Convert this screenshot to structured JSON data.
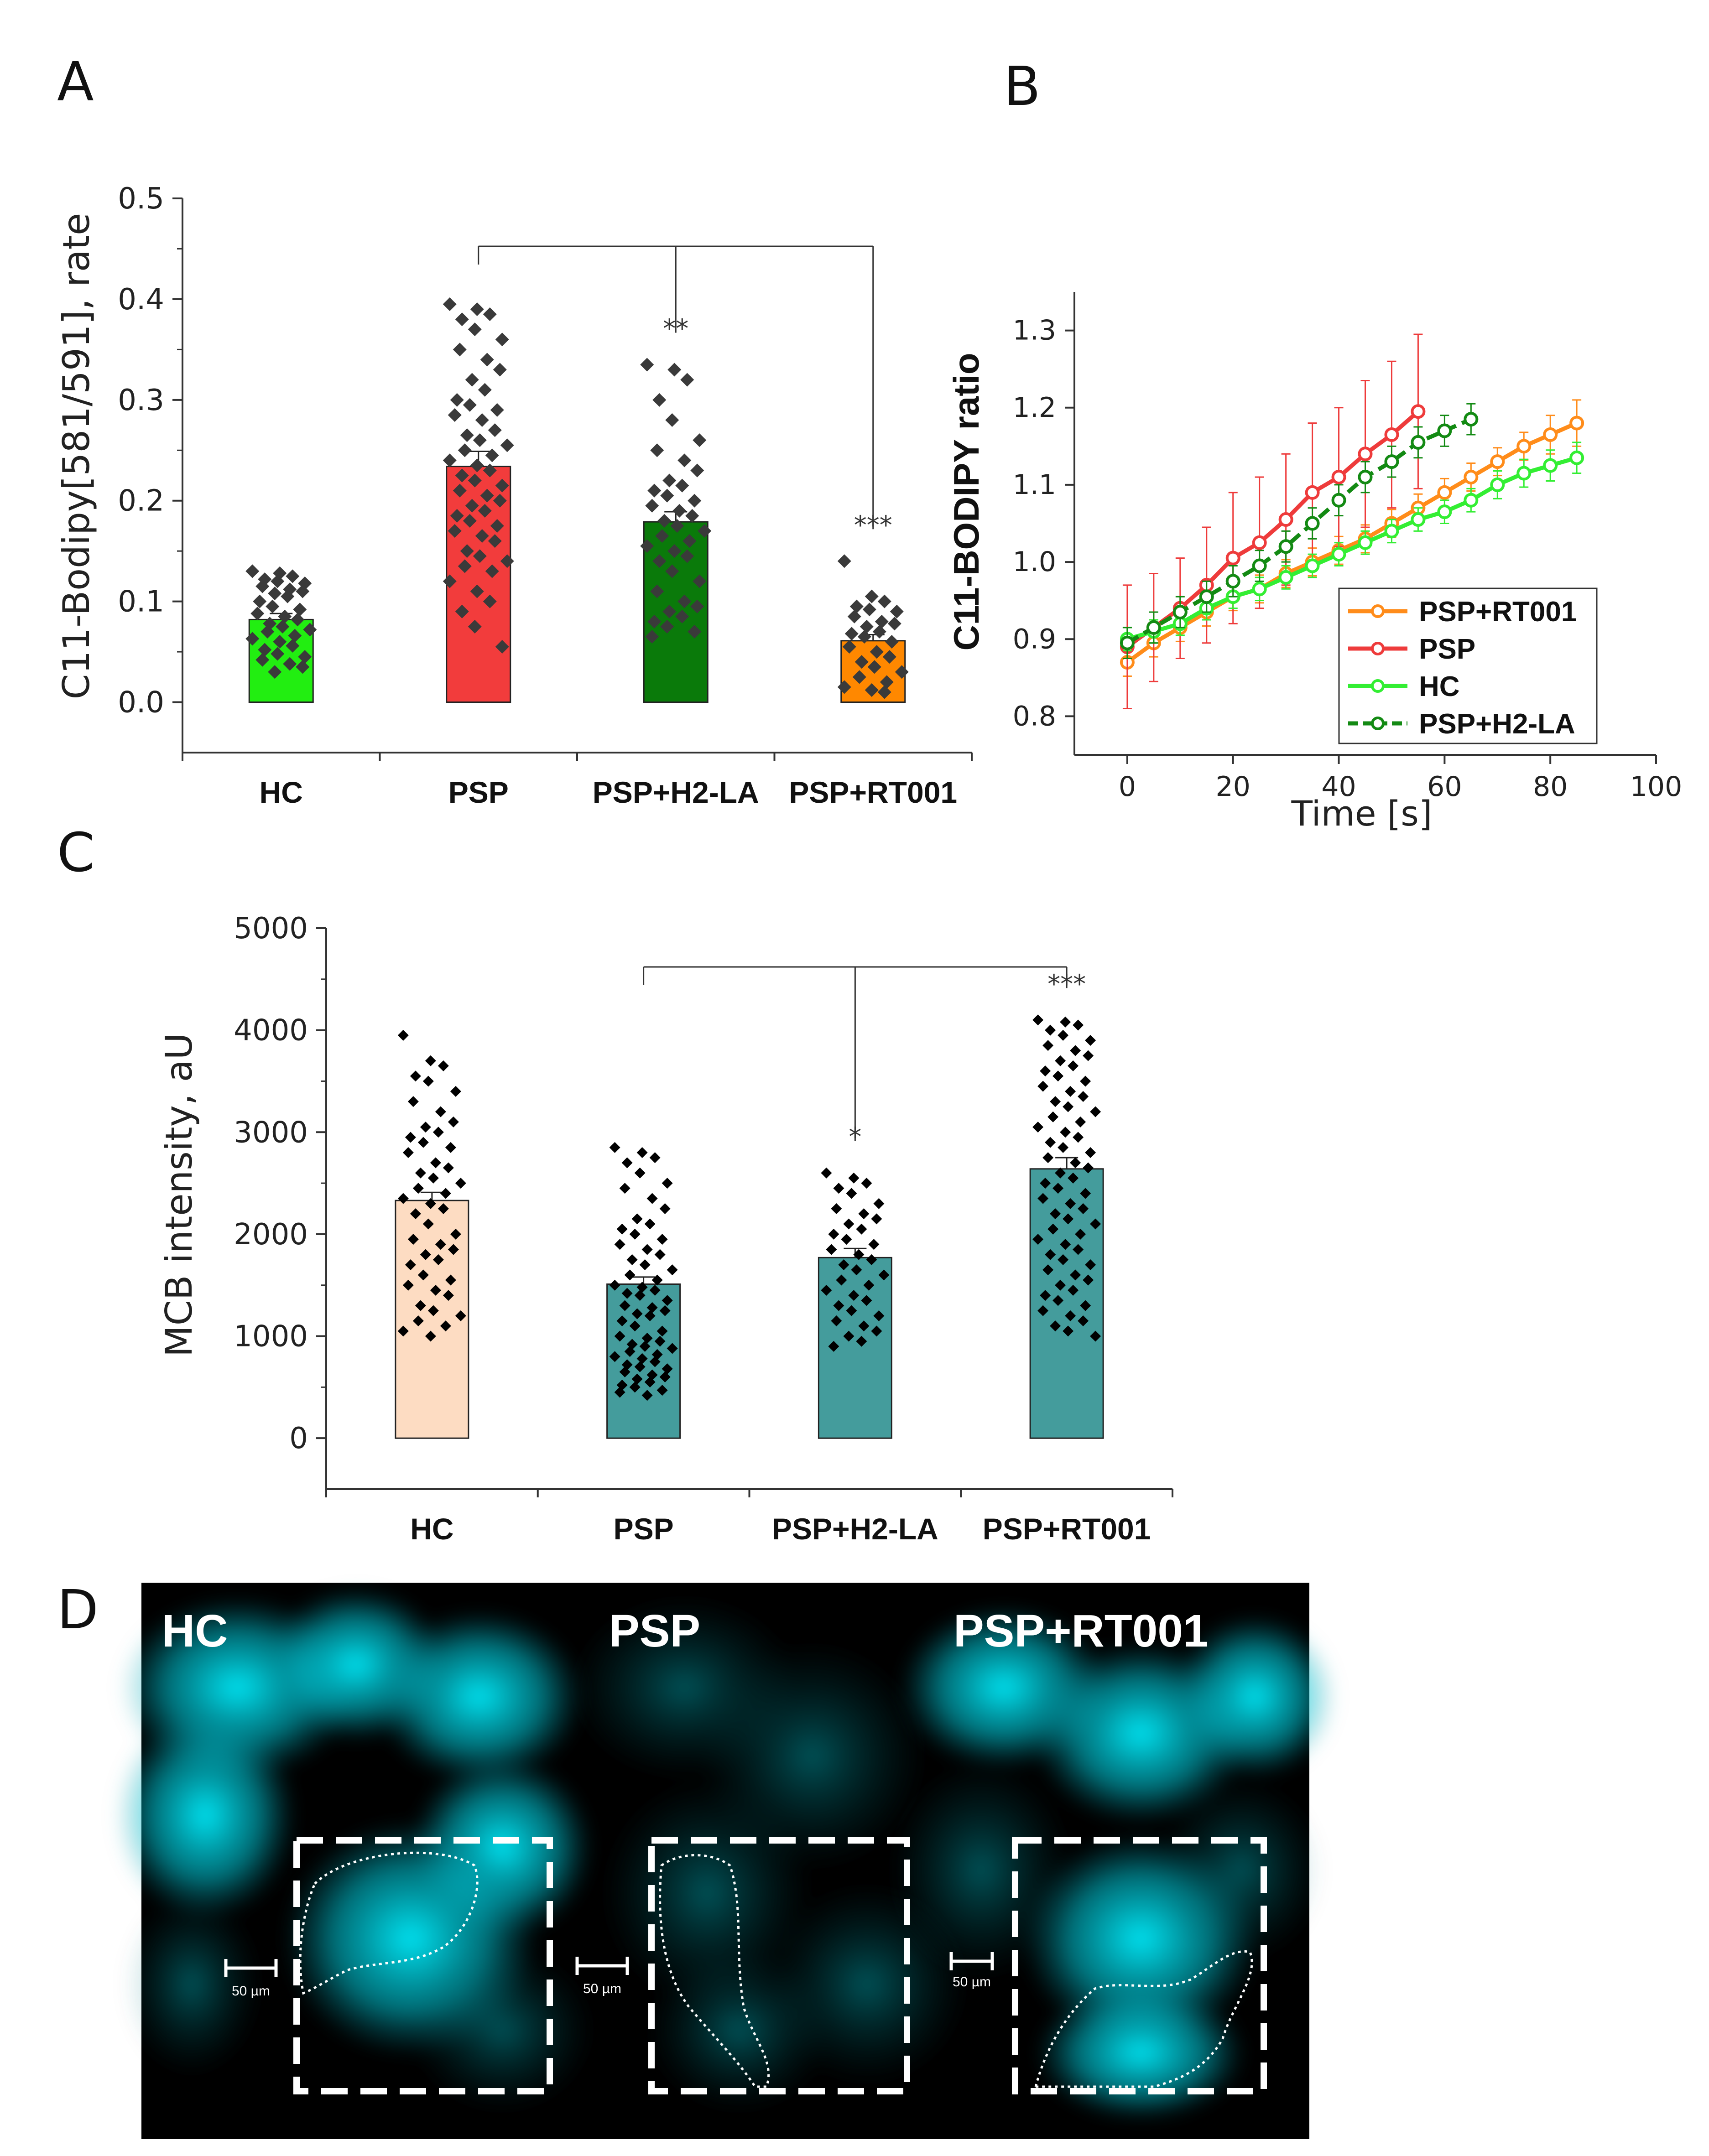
{
  "panels": {
    "a": "A",
    "b": "B",
    "c": "C",
    "d": "D"
  },
  "chart_data": [
    {
      "id": "A",
      "type": "bar",
      "ylabel": "C11-Bodipy[581/591], rate",
      "ylim": [
        -0.05,
        0.5
      ],
      "yticks": [
        "0.0",
        "0.1",
        "0.2",
        "0.3",
        "0.4",
        "0.5"
      ],
      "categories": [
        "HC",
        "PSP",
        "PSP+H2-LA",
        "PSP+RT001"
      ],
      "values": [
        0.082,
        0.234,
        0.179,
        0.061
      ],
      "errors": [
        0.006,
        0.015,
        0.01,
        0.006
      ],
      "colors": [
        "#22ee11",
        "#f23c3c",
        "#0a7a0a",
        "#ff8800"
      ],
      "significance": [
        {
          "category": "PSP+H2-LA",
          "label": "**"
        },
        {
          "category": "PSP+RT001",
          "label": "***"
        }
      ],
      "bracket_from": "PSP",
      "points": [
        [
          0.13,
          0.128,
          0.125,
          0.122,
          0.12,
          0.118,
          0.115,
          0.112,
          0.11,
          0.108,
          0.105,
          0.1,
          0.095,
          0.092,
          0.088,
          0.085,
          0.082,
          0.078,
          0.075,
          0.072,
          0.07,
          0.066,
          0.063,
          0.06,
          0.056,
          0.052,
          0.048,
          0.045,
          0.042,
          0.038,
          0.035,
          0.03
        ],
        [
          0.395,
          0.39,
          0.385,
          0.38,
          0.37,
          0.36,
          0.35,
          0.34,
          0.33,
          0.32,
          0.31,
          0.3,
          0.295,
          0.29,
          0.285,
          0.28,
          0.27,
          0.265,
          0.26,
          0.255,
          0.25,
          0.245,
          0.24,
          0.235,
          0.23,
          0.225,
          0.22,
          0.215,
          0.21,
          0.205,
          0.2,
          0.195,
          0.19,
          0.185,
          0.18,
          0.175,
          0.17,
          0.165,
          0.16,
          0.15,
          0.145,
          0.14,
          0.135,
          0.13,
          0.12,
          0.11,
          0.1,
          0.09,
          0.075,
          0.055
        ],
        [
          0.335,
          0.33,
          0.32,
          0.3,
          0.28,
          0.26,
          0.25,
          0.24,
          0.23,
          0.22,
          0.215,
          0.21,
          0.205,
          0.2,
          0.195,
          0.19,
          0.185,
          0.18,
          0.175,
          0.17,
          0.165,
          0.16,
          0.155,
          0.15,
          0.145,
          0.14,
          0.13,
          0.12,
          0.11,
          0.1,
          0.095,
          0.09,
          0.085,
          0.08,
          0.075,
          0.07,
          0.065
        ],
        [
          0.14,
          0.105,
          0.1,
          0.095,
          0.092,
          0.09,
          0.085,
          0.08,
          0.078,
          0.075,
          0.07,
          0.068,
          0.065,
          0.06,
          0.055,
          0.05,
          0.045,
          0.04,
          0.035,
          0.03,
          0.025,
          0.02,
          0.015,
          0.012,
          0.01
        ]
      ]
    },
    {
      "id": "B",
      "type": "line",
      "xlabel": "Time [s]",
      "ylabel": "C11-BODIPY ratio",
      "xlim": [
        -10,
        100
      ],
      "ylim": [
        0.75,
        1.35
      ],
      "xticks": [
        "0",
        "20",
        "40",
        "60",
        "80",
        "100"
      ],
      "yticks": [
        "0.8",
        "0.9",
        "1.0",
        "1.1",
        "1.2",
        "1.3"
      ],
      "legend_position": "bottom-right",
      "series": [
        {
          "name": "PSP+RT001",
          "color": "#ff8c1a",
          "dashed": false,
          "x": [
            0,
            5,
            10,
            15,
            20,
            25,
            30,
            35,
            40,
            45,
            50,
            55,
            60,
            65,
            70,
            75,
            80,
            85
          ],
          "y": [
            0.87,
            0.895,
            0.915,
            0.935,
            0.955,
            0.965,
            0.985,
            1.0,
            1.015,
            1.03,
            1.05,
            1.07,
            1.09,
            1.11,
            1.13,
            1.15,
            1.165,
            1.18
          ],
          "err": [
            0.018,
            0.018,
            0.018,
            0.018,
            0.018,
            0.018,
            0.018,
            0.018,
            0.018,
            0.018,
            0.018,
            0.018,
            0.018,
            0.018,
            0.018,
            0.018,
            0.025,
            0.03
          ]
        },
        {
          "name": "PSP",
          "color": "#ee3b3b",
          "dashed": false,
          "x": [
            0,
            5,
            10,
            15,
            20,
            25,
            30,
            35,
            40,
            45,
            50,
            55
          ],
          "y": [
            0.89,
            0.915,
            0.94,
            0.97,
            1.005,
            1.025,
            1.055,
            1.09,
            1.11,
            1.14,
            1.165,
            1.195
          ],
          "err": [
            0.08,
            0.07,
            0.065,
            0.075,
            0.085,
            0.085,
            0.085,
            0.09,
            0.09,
            0.095,
            0.095,
            0.1
          ]
        },
        {
          "name": "HC",
          "color": "#33ee33",
          "dashed": false,
          "x": [
            0,
            5,
            10,
            15,
            20,
            25,
            30,
            35,
            40,
            45,
            50,
            55,
            60,
            65,
            70,
            75,
            80,
            85
          ],
          "y": [
            0.9,
            0.91,
            0.92,
            0.94,
            0.955,
            0.965,
            0.98,
            0.995,
            1.01,
            1.025,
            1.04,
            1.055,
            1.065,
            1.08,
            1.1,
            1.115,
            1.125,
            1.135
          ],
          "err": [
            0.015,
            0.015,
            0.015,
            0.015,
            0.015,
            0.015,
            0.015,
            0.015,
            0.015,
            0.015,
            0.015,
            0.015,
            0.015,
            0.015,
            0.018,
            0.018,
            0.02,
            0.02
          ]
        },
        {
          "name": "PSP+H2-LA",
          "color": "#138a13",
          "dashed": true,
          "x": [
            0,
            5,
            10,
            15,
            20,
            25,
            30,
            35,
            40,
            45,
            50,
            55,
            60,
            65
          ],
          "y": [
            0.895,
            0.915,
            0.935,
            0.955,
            0.975,
            0.995,
            1.02,
            1.05,
            1.08,
            1.11,
            1.13,
            1.155,
            1.17,
            1.185
          ],
          "err": [
            0.02,
            0.02,
            0.02,
            0.02,
            0.02,
            0.02,
            0.02,
            0.02,
            0.02,
            0.02,
            0.02,
            0.02,
            0.02,
            0.02
          ]
        }
      ]
    },
    {
      "id": "C",
      "type": "bar",
      "ylabel": "MCB intensity, aU",
      "ylim": [
        -500,
        5000
      ],
      "yticks": [
        "0",
        "1000",
        "2000",
        "3000",
        "4000",
        "5000"
      ],
      "categories": [
        "HC",
        "PSP",
        "PSP+H2-LA",
        "PSP+RT001"
      ],
      "values": [
        2330,
        1510,
        1770,
        2640
      ],
      "errors": [
        80,
        70,
        90,
        110
      ],
      "colors": [
        "#fddcc2",
        "#449c9c",
        "#449c9c",
        "#449c9c"
      ],
      "significance": [
        {
          "category": "PSP+H2-LA",
          "label": "*"
        },
        {
          "category": "PSP+RT001",
          "label": "***"
        }
      ],
      "bracket_from": "PSP",
      "points": [
        [
          3950,
          3700,
          3650,
          3550,
          3500,
          3400,
          3300,
          3200,
          3100,
          3050,
          3000,
          2950,
          2900,
          2850,
          2800,
          2700,
          2650,
          2600,
          2550,
          2500,
          2450,
          2400,
          2350,
          2300,
          2250,
          2200,
          2100,
          2000,
          1950,
          1900,
          1850,
          1800,
          1750,
          1700,
          1600,
          1550,
          1500,
          1450,
          1400,
          1300,
          1250,
          1200,
          1150,
          1100,
          1050,
          1000
        ],
        [
          2850,
          2800,
          2750,
          2700,
          2600,
          2500,
          2450,
          2350,
          2250,
          2150,
          2100,
          2050,
          2000,
          1950,
          1900,
          1850,
          1800,
          1750,
          1700,
          1650,
          1600,
          1550,
          1500,
          1480,
          1450,
          1420,
          1400,
          1350,
          1300,
          1280,
          1250,
          1220,
          1200,
          1150,
          1100,
          1050,
          1000,
          980,
          950,
          920,
          900,
          880,
          850,
          820,
          800,
          780,
          750,
          720,
          700,
          680,
          650,
          620,
          600,
          580,
          550,
          520,
          500,
          470,
          450,
          420
        ],
        [
          2600,
          2550,
          2500,
          2450,
          2400,
          2300,
          2250,
          2200,
          2150,
          2100,
          2050,
          2000,
          1950,
          1900,
          1850,
          1800,
          1750,
          1700,
          1650,
          1600,
          1550,
          1500,
          1450,
          1400,
          1350,
          1300,
          1250,
          1200,
          1150,
          1100,
          1050,
          1000,
          950,
          900
        ],
        [
          4100,
          4080,
          4050,
          4000,
          3950,
          3900,
          3850,
          3800,
          3750,
          3700,
          3650,
          3600,
          3550,
          3500,
          3450,
          3400,
          3350,
          3300,
          3250,
          3200,
          3150,
          3100,
          3050,
          3000,
          2950,
          2900,
          2850,
          2800,
          2750,
          2700,
          2650,
          2600,
          2550,
          2500,
          2450,
          2400,
          2350,
          2300,
          2250,
          2200,
          2150,
          2100,
          2050,
          2000,
          1950,
          1900,
          1850,
          1800,
          1750,
          1700,
          1650,
          1600,
          1550,
          1500,
          1450,
          1400,
          1350,
          1300,
          1250,
          1200,
          1150,
          1100,
          1050,
          1000
        ]
      ]
    }
  ],
  "micrographs": {
    "labels": [
      "HC",
      "PSP",
      "PSP+RT001"
    ],
    "scale_bar": "50 µm",
    "colors": {
      "background": "#000000",
      "stain": "#00e5ee",
      "frame": "#ffffff"
    }
  }
}
